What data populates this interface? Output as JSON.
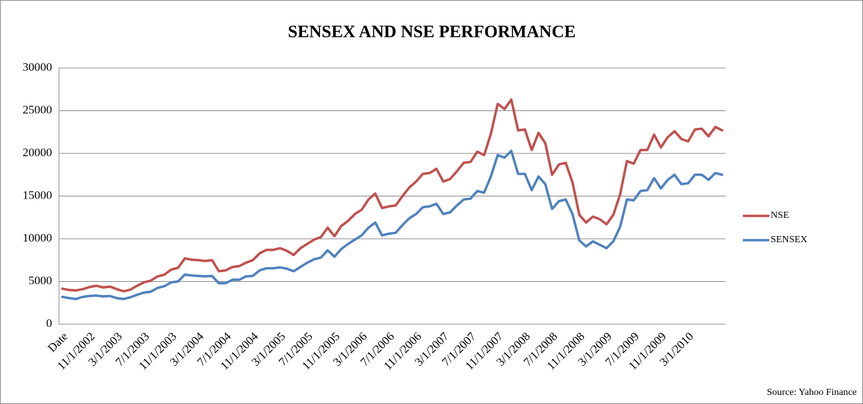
{
  "chart_data": {
    "type": "line",
    "title": "SENSEX AND NSE PERFORMANCE",
    "annotation": "Source: Yahoo Finance",
    "categories": [
      "Date",
      null,
      null,
      null,
      "11/1/2002",
      null,
      null,
      null,
      "3/1/2003",
      null,
      null,
      null,
      "7/1/2003",
      null,
      null,
      null,
      "11/1/2003",
      null,
      null,
      null,
      "3/1/2004",
      null,
      null,
      null,
      "7/1/2004",
      null,
      null,
      null,
      "11/1/2004",
      null,
      null,
      null,
      "3/1/2005",
      null,
      null,
      null,
      "7/1/2005",
      null,
      null,
      null,
      "11/1/2005",
      null,
      null,
      null,
      "3/1/2006",
      null,
      null,
      null,
      "7/1/2006",
      null,
      null,
      null,
      "11/1/2006",
      null,
      null,
      null,
      "3/1/2007",
      null,
      null,
      null,
      "7/1/2007",
      null,
      null,
      null,
      "11/1/2007",
      null,
      null,
      null,
      "3/1/2008",
      null,
      null,
      null,
      "7/1/2008",
      null,
      null,
      null,
      "11/1/2008",
      null,
      null,
      null,
      "3/1/2009",
      null,
      null,
      null,
      "7/1/2009",
      null,
      null,
      null,
      "11/1/2009",
      null,
      null,
      null,
      "3/1/2010",
      null,
      null,
      null,
      null,
      null
    ],
    "series": [
      {
        "name": "NSE",
        "color": "#c0504d",
        "values": [
          4150,
          4000,
          3950,
          4100,
          4350,
          4500,
          4300,
          4400,
          4100,
          3850,
          4050,
          4500,
          4900,
          5100,
          5600,
          5800,
          6400,
          6600,
          7700,
          7550,
          7500,
          7400,
          7500,
          6200,
          6300,
          6700,
          6800,
          7200,
          7500,
          8300,
          8700,
          8700,
          8900,
          8600,
          8100,
          8900,
          9400,
          9900,
          10200,
          11300,
          10300,
          11500,
          12100,
          12900,
          13400,
          14600,
          15300,
          13600,
          13800,
          13900,
          15000,
          16000,
          16700,
          17600,
          17700,
          18200,
          16700,
          17000,
          17900,
          18900,
          19000,
          20200,
          19800,
          22300,
          25800,
          25200,
          26300,
          22700,
          22800,
          20400,
          22400,
          21200,
          17500,
          18700,
          18900,
          16600,
          12800,
          11900,
          12600,
          12300,
          11700,
          12800,
          15200,
          19100,
          18800,
          20400,
          20400,
          22200,
          20700,
          21900,
          22600,
          21700,
          21400,
          22800,
          22900,
          22000,
          23100,
          22700
        ]
      },
      {
        "name": "SENSEX",
        "color": "#4f81bd",
        "values": [
          3200,
          3050,
          2950,
          3200,
          3300,
          3350,
          3250,
          3300,
          3050,
          2950,
          3150,
          3450,
          3700,
          3800,
          4250,
          4450,
          4900,
          5000,
          5800,
          5700,
          5650,
          5600,
          5650,
          4800,
          4800,
          5200,
          5200,
          5600,
          5650,
          6300,
          6550,
          6550,
          6650,
          6500,
          6200,
          6700,
          7200,
          7600,
          7800,
          8650,
          7900,
          8800,
          9400,
          9900,
          10400,
          11300,
          11900,
          10400,
          10600,
          10700,
          11600,
          12400,
          12900,
          13700,
          13800,
          14100,
          12900,
          13100,
          13900,
          14600,
          14700,
          15600,
          15400,
          17300,
          19800,
          19500,
          20300,
          17600,
          17600,
          15700,
          17300,
          16400,
          13500,
          14400,
          14600,
          12900,
          9800,
          9100,
          9700,
          9300,
          8900,
          9700,
          11400,
          14600,
          14500,
          15600,
          15700,
          17100,
          15900,
          16900,
          17500,
          16400,
          16500,
          17500,
          17500,
          16900,
          17700,
          17500
        ]
      }
    ],
    "ylim": [
      0,
      30000
    ],
    "yticks": [
      0,
      5000,
      10000,
      15000,
      20000,
      25000,
      30000
    ],
    "grid": true,
    "legend": "right"
  }
}
